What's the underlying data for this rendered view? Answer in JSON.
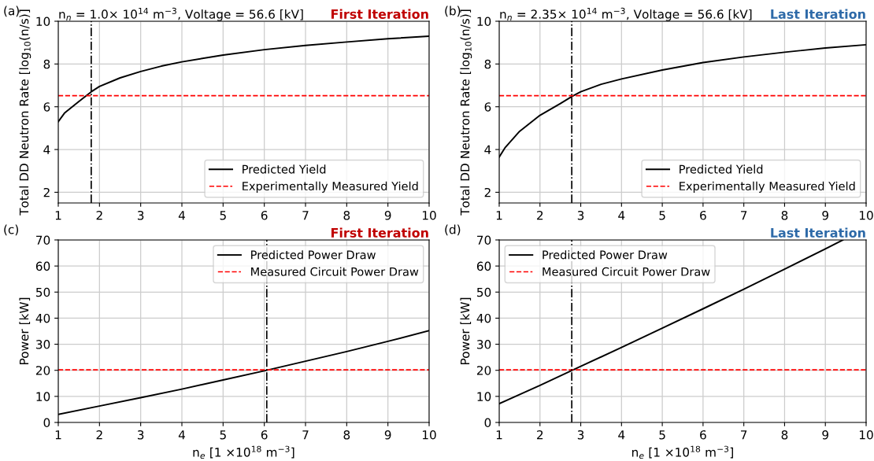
{
  "chart_data": [
    {
      "type": "line",
      "title": "n$_{n}$ = 1.0× 10$^{14}$ m$^{−3}$, Voltage = 56.6 [kV]",
      "subtitle": "First Iteration",
      "ylabel": "Total DD Neutron Rate [log$_{10}$(n/s)]",
      "annotations": [
        "(a)"
      ],
      "series": [
        {
          "name": "Predicted Yield",
          "color": "#000000",
          "x": [
            1,
            1.15,
            1.5,
            1.8,
            2,
            2.5,
            3,
            3.5,
            4,
            5,
            6,
            7,
            8,
            9,
            10
          ],
          "values": [
            5.3,
            5.7,
            6.25,
            6.7,
            6.95,
            7.35,
            7.65,
            7.9,
            8.1,
            8.42,
            8.67,
            8.87,
            9.03,
            9.18,
            9.3
          ]
        }
      ],
      "ref_lines": [
        {
          "axis": "y",
          "value": 6.52,
          "label": "Experimentally Measured Yield",
          "color": "#ff0000",
          "line_style": "dashed"
        },
        {
          "axis": "x",
          "value": 1.8,
          "color": "#000000",
          "line_style": "dashdot"
        }
      ],
      "xlim": [
        1,
        10
      ],
      "xticks": [
        1,
        2,
        3,
        4,
        5,
        6,
        7,
        8,
        9,
        10
      ],
      "ylim": [
        1.5,
        10
      ],
      "yticks": [
        2,
        4,
        6,
        8,
        10
      ],
      "grid": true,
      "legend": "bottom right",
      "line_style": "solid",
      "marker": "none"
    },
    {
      "type": "line",
      "title": "n$_{n}$ = 2.35× 10$^{14}$ m$^{−3}$, Voltage = 56.6 [kV]",
      "subtitle": "Last Iteration",
      "ylabel": "Total DD Neutron Rate [log$_{10}$(n/s)]",
      "annotations": [
        "(b)"
      ],
      "series": [
        {
          "name": "Predicted Yield",
          "color": "#000000",
          "x": [
            1,
            1.15,
            1.5,
            2,
            2.5,
            2.8,
            3,
            3.5,
            4,
            5,
            6,
            7,
            8,
            9,
            10
          ],
          "values": [
            3.65,
            4.1,
            4.85,
            5.6,
            6.15,
            6.5,
            6.7,
            7.05,
            7.3,
            7.72,
            8.07,
            8.33,
            8.55,
            8.75,
            8.9
          ]
        }
      ],
      "ref_lines": [
        {
          "axis": "y",
          "value": 6.52,
          "label": "Experimentally Measured Yield",
          "color": "#ff0000",
          "line_style": "dashed"
        },
        {
          "axis": "x",
          "value": 2.78,
          "color": "#000000",
          "line_style": "dashdot"
        }
      ],
      "xlim": [
        1,
        10
      ],
      "xticks": [
        1,
        2,
        3,
        4,
        5,
        6,
        7,
        8,
        9,
        10
      ],
      "ylim": [
        1.5,
        10
      ],
      "yticks": [
        2,
        4,
        6,
        8,
        10
      ],
      "grid": true,
      "legend": "bottom right",
      "line_style": "solid",
      "marker": "none"
    },
    {
      "type": "line",
      "subtitle": "First Iteration",
      "xlabel": "n$_{e}$ [1 ×10$^{18}$ m$^{−3}$]",
      "ylabel": "Power [kW]",
      "annotations": [
        "(c)"
      ],
      "series": [
        {
          "name": "Predicted Power Draw",
          "color": "#000000",
          "x": [
            1,
            2,
            3,
            4,
            5,
            6,
            7,
            8,
            9,
            10
          ],
          "values": [
            3.1,
            6.3,
            9.5,
            12.8,
            16.3,
            19.8,
            23.5,
            27.2,
            31.1,
            35.2
          ]
        }
      ],
      "ref_lines": [
        {
          "axis": "y",
          "value": 20.2,
          "label": "Measured Circuit Power Draw",
          "color": "#ff0000",
          "line_style": "dashed"
        },
        {
          "axis": "x",
          "value": 6.06,
          "color": "#000000",
          "line_style": "dashdot"
        }
      ],
      "xlim": [
        1,
        10
      ],
      "xticks": [
        1,
        2,
        3,
        4,
        5,
        6,
        7,
        8,
        9,
        10
      ],
      "ylim": [
        0,
        70
      ],
      "yticks": [
        0,
        10,
        20,
        30,
        40,
        50,
        60,
        70
      ],
      "grid": true,
      "legend": "top right",
      "line_style": "solid",
      "marker": "none"
    },
    {
      "type": "line",
      "subtitle": "Last Iteration",
      "xlabel": "n$_{e}$ [1 ×10$^{18}$ m$^{−3}$]",
      "ylabel": "Power [kW]",
      "annotations": [
        "(d)"
      ],
      "series": [
        {
          "name": "Predicted Power Draw",
          "color": "#000000",
          "x": [
            1,
            2,
            3,
            4,
            5,
            6,
            7,
            8,
            9,
            9.43
          ],
          "values": [
            7.2,
            14.2,
            21.5,
            28.8,
            36.2,
            43.6,
            51.1,
            58.8,
            66.6,
            70
          ]
        }
      ],
      "ref_lines": [
        {
          "axis": "y",
          "value": 20.2,
          "label": "Measured Circuit Power Draw",
          "color": "#ff0000",
          "line_style": "dashed"
        },
        {
          "axis": "x",
          "value": 2.78,
          "color": "#000000",
          "line_style": "dashdot"
        }
      ],
      "xlim": [
        1,
        10
      ],
      "xticks": [
        1,
        2,
        3,
        4,
        5,
        6,
        7,
        8,
        9,
        10
      ],
      "ylim": [
        0,
        70
      ],
      "yticks": [
        0,
        10,
        20,
        30,
        40,
        50,
        60,
        70
      ],
      "grid": true,
      "legend": "top left",
      "line_style": "solid",
      "marker": "none"
    }
  ]
}
